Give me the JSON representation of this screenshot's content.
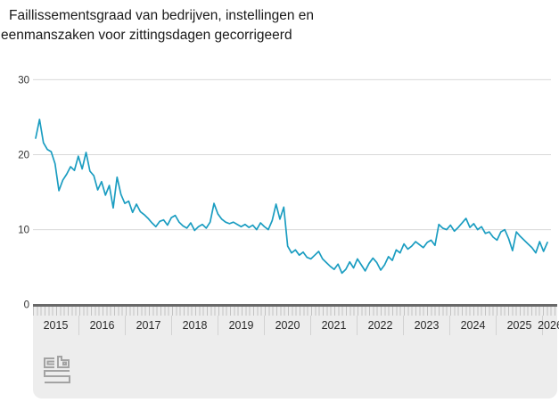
{
  "header": {
    "title_line1": "Faillissementsgraad van bedrijven, instellingen en",
    "title_line2": "eenmanszaken voor zittingsdagen gecorrigeerd"
  },
  "y_axis": {
    "tick_labels": [
      "0",
      "10",
      "20",
      "30"
    ]
  },
  "timeline": {
    "years": [
      "2015",
      "2016",
      "2017",
      "2018",
      "2019",
      "2020",
      "2021",
      "2022",
      "2023",
      "2024",
      "2025",
      "2026"
    ]
  },
  "footer": {
    "logo": "cbs-logo"
  },
  "colors": {
    "line": "#1b9dc1",
    "grid": "#d9d9d9",
    "panel": "#ededed",
    "slider_bar": "#696969",
    "axis_text": "#333333",
    "title_text": "#1a1a1a",
    "logo_gray": "#a3a3a3"
  },
  "chart_data": {
    "type": "line",
    "title": "Faillissementsgraad van bedrijven, instellingen en eenmanszaken voor zittingsdagen gecorrigeerd",
    "xlabel": "",
    "ylabel": "",
    "frequency": "monthly",
    "x_start": "2015-01",
    "x_end": "2026-01",
    "year_labels": [
      "2015",
      "2016",
      "2017",
      "2018",
      "2019",
      "2020",
      "2021",
      "2022",
      "2023",
      "2024",
      "2025",
      "2026"
    ],
    "y_ticks": [
      0,
      10,
      20,
      30
    ],
    "ylim": [
      0,
      32
    ],
    "grid": "horizontal",
    "legend": "none",
    "series": [
      {
        "name": "Faillissementsgraad",
        "color": "#1b9dc1",
        "values": [
          22.2,
          24.7,
          21.6,
          20.7,
          20.4,
          18.8,
          15.2,
          16.6,
          17.4,
          18.4,
          17.9,
          19.8,
          18.1,
          20.3,
          17.8,
          17.2,
          15.3,
          16.4,
          14.6,
          15.9,
          12.9,
          17.0,
          14.7,
          13.5,
          13.8,
          12.3,
          13.4,
          12.4,
          12.0,
          11.5,
          10.9,
          10.4,
          11.1,
          11.3,
          10.6,
          11.6,
          11.9,
          11.0,
          10.5,
          10.2,
          10.9,
          9.9,
          10.4,
          10.7,
          10.2,
          11.0,
          13.5,
          12.1,
          11.4,
          11.0,
          10.8,
          11.0,
          10.7,
          10.4,
          10.7,
          10.3,
          10.6,
          10.0,
          10.9,
          10.4,
          10.0,
          11.2,
          13.4,
          11.4,
          13.0,
          7.8,
          6.9,
          7.3,
          6.6,
          7.0,
          6.3,
          6.1,
          6.6,
          7.1,
          6.1,
          5.6,
          5.1,
          4.7,
          5.4,
          4.2,
          4.7,
          5.7,
          4.9,
          6.1,
          5.3,
          4.5,
          5.5,
          6.2,
          5.6,
          4.6,
          5.3,
          6.4,
          5.9,
          7.3,
          6.9,
          8.1,
          7.4,
          7.8,
          8.4,
          8.0,
          7.6,
          8.3,
          8.6,
          7.9,
          10.7,
          10.2,
          10.0,
          10.6,
          9.8,
          10.3,
          10.9,
          11.5,
          10.3,
          10.8,
          10.0,
          10.4,
          9.5,
          9.7,
          9.0,
          8.6,
          9.7,
          10.0,
          8.8,
          7.2,
          9.7,
          9.1,
          8.6,
          8.1,
          7.6,
          6.9,
          8.4,
          7.1,
          8.3
        ]
      }
    ]
  }
}
